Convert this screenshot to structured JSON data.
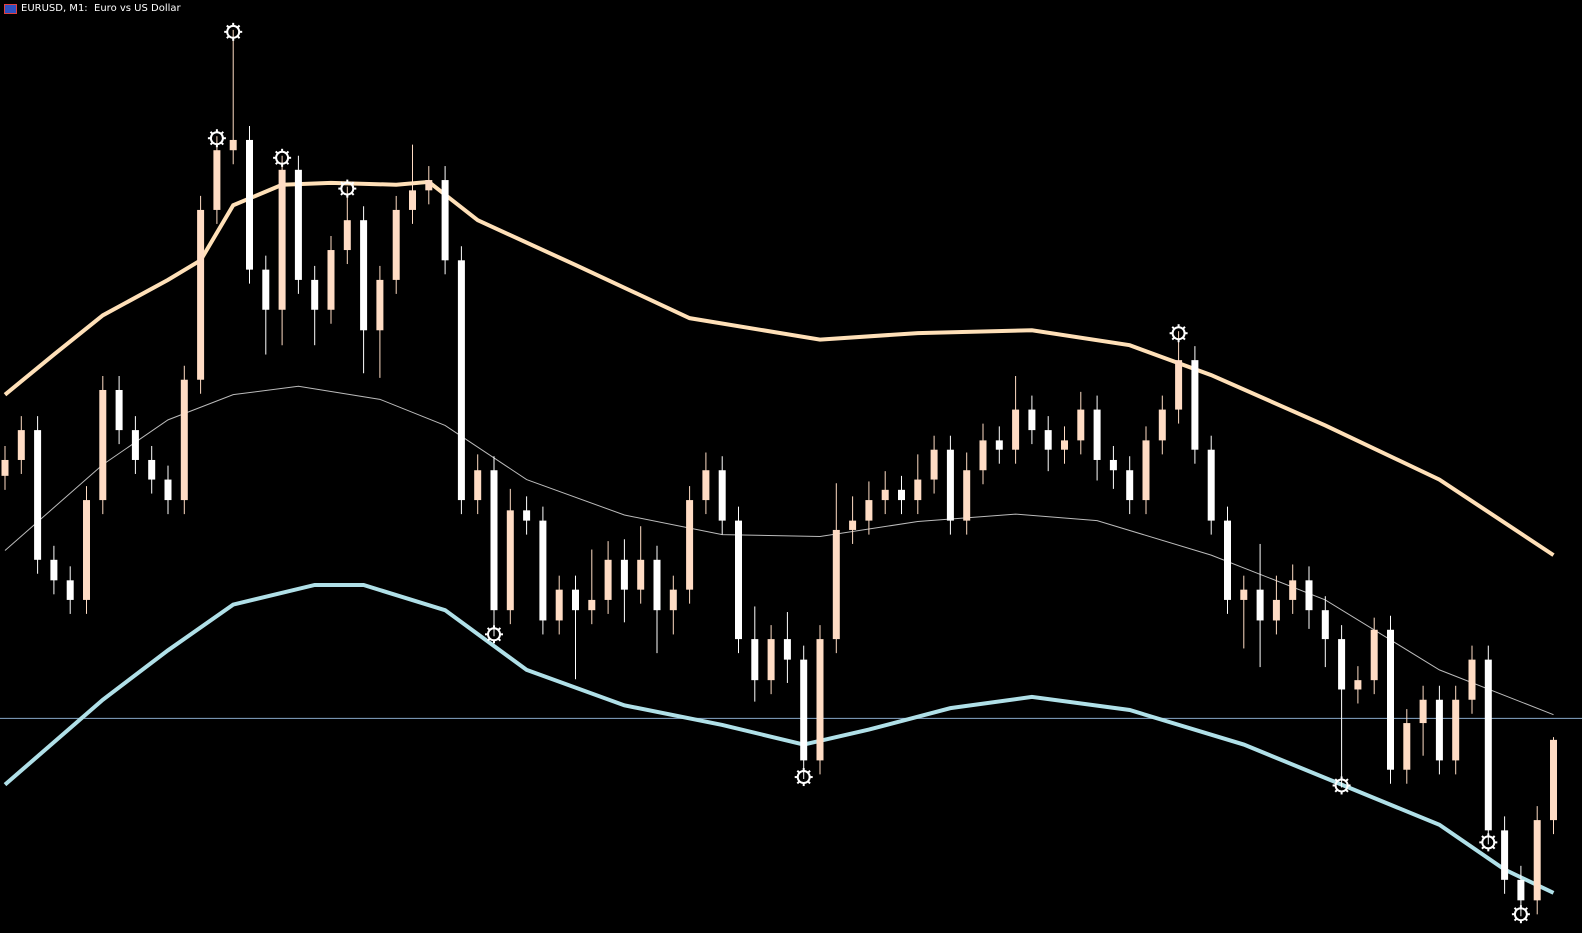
{
  "chart_data": {
    "type": "candlestick",
    "title": "EURUSD, M1:  Euro vs US Dollar",
    "ylim": [
      0,
      100
    ],
    "bull_color": "#ffdcc4",
    "bear_color": "#ffffff",
    "candles": [
      [
        49,
        52.2,
        47.5,
        50.7
      ],
      [
        50.7,
        55.4,
        49.2,
        53.9
      ],
      [
        53.9,
        55.4,
        38.5,
        40
      ],
      [
        40,
        41.5,
        36.3,
        37.8
      ],
      [
        37.8,
        39.3,
        34.2,
        35.7
      ],
      [
        35.7,
        47.9,
        34.2,
        46.4
      ],
      [
        46.4,
        59.7,
        44.9,
        58.2
      ],
      [
        58.2,
        59.7,
        52.4,
        53.9
      ],
      [
        53.9,
        55.4,
        49.2,
        50.7
      ],
      [
        50.7,
        52.2,
        47.1,
        48.6
      ],
      [
        48.6,
        50.1,
        44.9,
        46.4
      ],
      [
        46.4,
        60.8,
        44.9,
        59.3
      ],
      [
        59.3,
        79,
        57.8,
        77.5
      ],
      [
        77.5,
        85.4,
        76,
        83.9
      ],
      [
        83.9,
        96.8,
        82.4,
        85
      ],
      [
        85,
        86.5,
        69.6,
        71.1
      ],
      [
        71.1,
        72.6,
        62,
        66.8
      ],
      [
        66.8,
        83.3,
        63,
        81.8
      ],
      [
        81.8,
        83.3,
        68.5,
        70
      ],
      [
        70,
        71.5,
        63,
        66.8
      ],
      [
        66.8,
        74.7,
        65.3,
        73.2
      ],
      [
        73.2,
        80,
        71.7,
        76.4
      ],
      [
        76.4,
        77.9,
        60,
        64.6
      ],
      [
        64.6,
        71.5,
        59.5,
        70
      ],
      [
        70,
        79,
        68.5,
        77.5
      ],
      [
        77.5,
        84.5,
        76,
        79.6
      ],
      [
        79.6,
        82.2,
        78.1,
        80.7
      ],
      [
        80.7,
        82.2,
        70.6,
        72.1
      ],
      [
        72.1,
        73.6,
        44.9,
        46.4
      ],
      [
        46.4,
        51.3,
        44.9,
        49.6
      ],
      [
        49.6,
        51.1,
        31.8,
        34.6
      ],
      [
        34.6,
        47.6,
        33.1,
        45.3
      ],
      [
        45.3,
        46.8,
        42.7,
        44.2
      ],
      [
        44.2,
        45.7,
        32,
        33.5
      ],
      [
        33.5,
        38.3,
        32,
        36.8
      ],
      [
        36.8,
        38.3,
        27.2,
        34.6
      ],
      [
        34.6,
        41.1,
        33.1,
        35.7
      ],
      [
        35.7,
        42,
        34.2,
        40
      ],
      [
        40,
        42.2,
        33.3,
        36.8
      ],
      [
        36.8,
        43.6,
        35.3,
        40
      ],
      [
        40,
        41.5,
        30,
        34.6
      ],
      [
        34.6,
        38.3,
        32,
        36.8
      ],
      [
        36.8,
        47.9,
        35.3,
        46.4
      ],
      [
        46.4,
        51.5,
        44.9,
        49.6
      ],
      [
        49.6,
        51.1,
        42.7,
        44.2
      ],
      [
        44.2,
        45.7,
        30,
        31.5
      ],
      [
        31.5,
        35,
        24.8,
        27.1
      ],
      [
        27.1,
        33,
        25.6,
        31.5
      ],
      [
        31.5,
        34.4,
        26.8,
        29.3
      ],
      [
        29.3,
        30.8,
        16.5,
        18.5
      ],
      [
        18.5,
        33,
        17,
        31.5
      ],
      [
        31.5,
        48.2,
        30,
        43.2
      ],
      [
        43.2,
        46.8,
        41.7,
        44.2
      ],
      [
        44.2,
        48.4,
        42.7,
        46.4
      ],
      [
        46.4,
        49.5,
        44.9,
        47.5
      ],
      [
        47.5,
        49,
        44.9,
        46.4
      ],
      [
        46.4,
        51.3,
        44.9,
        48.6
      ],
      [
        48.6,
        53.3,
        47.1,
        51.8
      ],
      [
        51.8,
        53.3,
        42.7,
        44.2
      ],
      [
        44.2,
        51.5,
        42.7,
        49.6
      ],
      [
        49.6,
        54.6,
        48.1,
        52.8
      ],
      [
        52.8,
        54.3,
        50.3,
        51.8
      ],
      [
        51.8,
        59.7,
        50.3,
        56.1
      ],
      [
        56.1,
        57.6,
        52.4,
        53.9
      ],
      [
        53.9,
        55.4,
        49.5,
        51.8
      ],
      [
        51.8,
        54.3,
        50.3,
        52.8
      ],
      [
        52.8,
        58,
        51.3,
        56.1
      ],
      [
        56.1,
        57.6,
        48.5,
        50.7
      ],
      [
        50.7,
        52.2,
        47.6,
        49.6
      ],
      [
        49.6,
        51.1,
        44.9,
        46.4
      ],
      [
        46.4,
        54.3,
        44.9,
        52.8
      ],
      [
        52.8,
        57.6,
        51.3,
        56.1
      ],
      [
        56.1,
        64.5,
        54.6,
        61.4
      ],
      [
        61.4,
        62.9,
        50.3,
        51.8
      ],
      [
        51.8,
        53.3,
        42.7,
        44.2
      ],
      [
        44.2,
        45.7,
        34.2,
        35.7
      ],
      [
        35.7,
        38.3,
        30.5,
        36.8
      ],
      [
        36.8,
        41.7,
        28.5,
        33.5
      ],
      [
        33.5,
        38.3,
        32,
        35.7
      ],
      [
        35.7,
        39.5,
        34.2,
        37.8
      ],
      [
        37.8,
        39.3,
        32.6,
        34.6
      ],
      [
        34.6,
        36.1,
        28.5,
        31.5
      ],
      [
        31.5,
        33,
        15.6,
        26.1
      ],
      [
        26.1,
        28.6,
        24.6,
        27.1
      ],
      [
        27.1,
        33.8,
        25.6,
        32.5
      ],
      [
        32.5,
        34,
        16,
        17.5
      ],
      [
        17.5,
        24,
        16,
        22.5
      ],
      [
        22.5,
        26.5,
        19,
        25
      ],
      [
        25,
        26.5,
        17,
        18.5
      ],
      [
        18.5,
        26.5,
        17,
        25
      ],
      [
        25,
        30.8,
        23.5,
        29.3
      ],
      [
        29.3,
        30.8,
        9.5,
        11
      ],
      [
        11,
        12.5,
        4.2,
        5.7
      ],
      [
        5.7,
        7.2,
        1.8,
        3.5
      ],
      [
        3.5,
        13.6,
        2,
        12.1
      ],
      [
        12.1,
        21,
        10.6,
        20.7
      ]
    ],
    "lines": [
      {
        "color": "#ffe0b8",
        "width": 4,
        "x": [
          0,
          3,
          6,
          10,
          12,
          14,
          17,
          20,
          24,
          26,
          29,
          35,
          42,
          50,
          56,
          63,
          69,
          74,
          81,
          88,
          95
        ],
        "values": [
          57.7,
          62,
          66.2,
          70,
          72.1,
          78,
          80.2,
          80.4,
          80.2,
          80.5,
          76.4,
          71.6,
          65.9,
          63.6,
          64.3,
          64.6,
          63,
          59.8,
          54.4,
          48.6,
          40.5
        ]
      },
      {
        "color": "#bbbbbb",
        "width": 1,
        "x": [
          0,
          6,
          10,
          14,
          18,
          23,
          27,
          32,
          38,
          44,
          50,
          56,
          62,
          67,
          74,
          81,
          88,
          95
        ],
        "values": [
          41,
          50.2,
          55,
          57.7,
          58.6,
          57.2,
          54.4,
          48.6,
          44.8,
          42.7,
          42.5,
          44.1,
          44.9,
          44.2,
          40.5,
          35.7,
          28.2,
          23.4
        ]
      },
      {
        "color": "#b0e0e8",
        "width": 4,
        "x": [
          0,
          6,
          10,
          14,
          19,
          22,
          27,
          32,
          38,
          44,
          49,
          53,
          58,
          63,
          69,
          76,
          82,
          88,
          92,
          95
        ],
        "values": [
          15.9,
          25,
          30.3,
          35.2,
          37.3,
          37.3,
          34.6,
          28.2,
          24.4,
          22.3,
          20.2,
          21.8,
          24.1,
          25.3,
          23.9,
          20.2,
          15.9,
          11.6,
          6.8,
          4.3
        ]
      }
    ],
    "hline": {
      "value": 23,
      "color": "#87a7c8"
    },
    "high_signals": [
      13,
      14,
      17,
      21,
      72
    ],
    "low_signals": [
      30,
      49,
      82,
      91,
      93
    ]
  }
}
